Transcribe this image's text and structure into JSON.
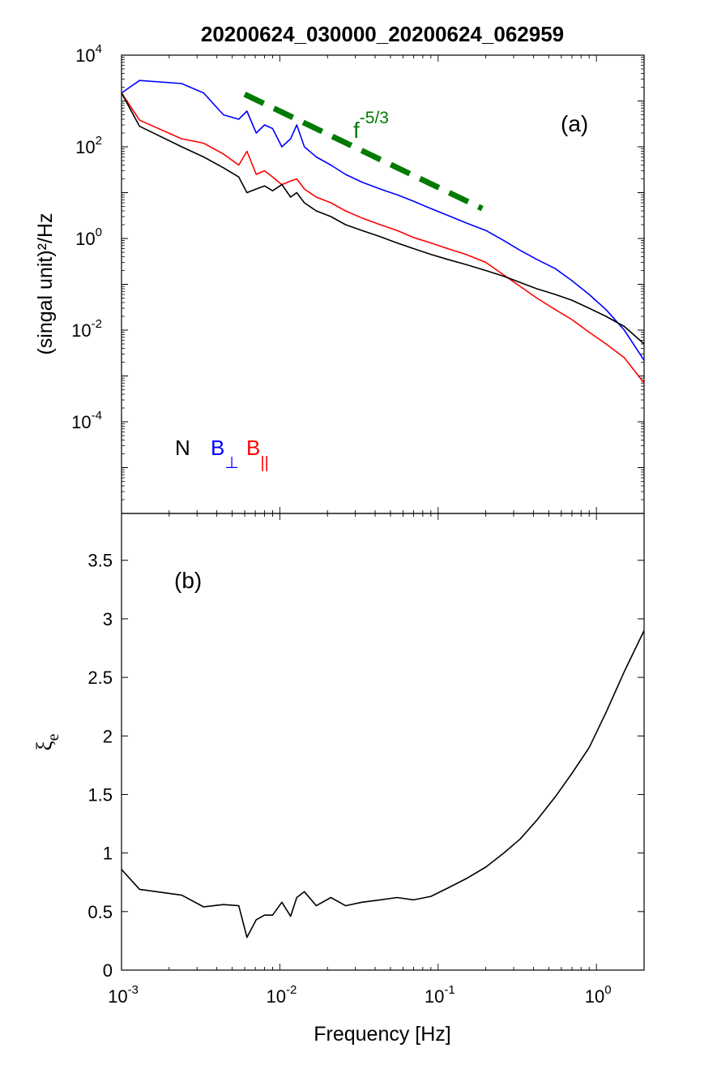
{
  "title": "20200624_030000_20200624_062959",
  "colors": {
    "N": "#000000",
    "B_perp": "#0000ff",
    "B_par": "#ff0000",
    "fit": "#007a00",
    "axis": "#000000"
  },
  "chart_data": [
    {
      "panel": "a",
      "type": "line",
      "panel_label": "(a)",
      "xscale": "log",
      "yscale": "log",
      "xlim": [
        0.001,
        2.0
      ],
      "ylim": [
        1e-06,
        10000
      ],
      "grid": false,
      "xlabel": "",
      "ylabel": "(singal unit)²/Hz",
      "ytick_labels": [
        {
          "value": 10000,
          "base": "10",
          "exp": "4"
        },
        {
          "value": 100,
          "base": "10",
          "exp": "2"
        },
        {
          "value": 1,
          "base": "10",
          "exp": "0"
        },
        {
          "value": 0.01,
          "base": "10",
          "exp": "-2"
        },
        {
          "value": 0.0001,
          "base": "10",
          "exp": "-4"
        }
      ],
      "legend": {
        "placement": "lower-left",
        "entries": [
          {
            "main": "N",
            "sub": "",
            "color": "#000000"
          },
          {
            "main": "B",
            "sub": "⊥",
            "color": "#0000ff"
          },
          {
            "main": "B",
            "sub": "||",
            "color": "#ff0000"
          }
        ]
      },
      "series": [
        {
          "color": "#0000ff",
          "x": [
            0.001,
            0.0013,
            0.0024,
            0.0033,
            0.0044,
            0.0055,
            0.0062,
            0.0071,
            0.008,
            0.009,
            0.0103,
            0.0117,
            0.0128,
            0.0143,
            0.017,
            0.021,
            0.026,
            0.033,
            0.043,
            0.055,
            0.07,
            0.09,
            0.115,
            0.15,
            0.2,
            0.26,
            0.33,
            0.42,
            0.55,
            0.7,
            0.9,
            1.15,
            1.5,
            2.0
          ],
          "y": [
            1500,
            2800,
            2400,
            1500,
            500,
            400,
            600,
            200,
            300,
            250,
            100,
            150,
            300,
            100,
            60,
            40,
            25,
            17,
            12,
            9,
            6.5,
            4.5,
            3.2,
            2.2,
            1.5,
            0.9,
            0.55,
            0.35,
            0.22,
            0.12,
            0.06,
            0.028,
            0.01,
            0.0022
          ]
        },
        {
          "color": "#ff0000",
          "x": [
            0.001,
            0.0013,
            0.0024,
            0.0033,
            0.0044,
            0.0055,
            0.0062,
            0.0071,
            0.008,
            0.009,
            0.0103,
            0.0117,
            0.0128,
            0.0143,
            0.017,
            0.021,
            0.026,
            0.033,
            0.043,
            0.055,
            0.07,
            0.09,
            0.115,
            0.15,
            0.2,
            0.26,
            0.33,
            0.42,
            0.55,
            0.7,
            0.9,
            1.15,
            1.5,
            2.0
          ],
          "y": [
            1500,
            380,
            150,
            120,
            70,
            40,
            80,
            25,
            30,
            22,
            15,
            18,
            20,
            12,
            8,
            6,
            4,
            2.8,
            2,
            1.5,
            1.05,
            0.8,
            0.6,
            0.45,
            0.3,
            0.16,
            0.09,
            0.05,
            0.028,
            0.017,
            0.009,
            0.005,
            0.0025,
            0.0007
          ]
        },
        {
          "color": "#000000",
          "x": [
            0.001,
            0.0013,
            0.0024,
            0.0033,
            0.0044,
            0.0055,
            0.0062,
            0.0071,
            0.008,
            0.009,
            0.0103,
            0.0117,
            0.0128,
            0.0143,
            0.017,
            0.021,
            0.026,
            0.033,
            0.043,
            0.055,
            0.07,
            0.09,
            0.115,
            0.15,
            0.2,
            0.26,
            0.33,
            0.42,
            0.55,
            0.7,
            0.9,
            1.15,
            1.5,
            2.0
          ],
          "y": [
            1500,
            280,
            100,
            60,
            35,
            22,
            10,
            12,
            14,
            11,
            15,
            8,
            10,
            6,
            4,
            3,
            2,
            1.5,
            1.1,
            0.8,
            0.6,
            0.45,
            0.35,
            0.27,
            0.2,
            0.15,
            0.11,
            0.08,
            0.06,
            0.045,
            0.03,
            0.02,
            0.012,
            0.005
          ]
        }
      ],
      "reference_line": {
        "label_main": "f",
        "label_exp": "-5/3",
        "color": "#007a00",
        "style": "dashed",
        "x": [
          0.006,
          0.19
        ],
        "y": [
          1400,
          4.5
        ]
      }
    },
    {
      "panel": "b",
      "type": "line",
      "panel_label": "(b)",
      "xscale": "log",
      "yscale": "linear",
      "xlim": [
        0.001,
        2.0
      ],
      "ylim": [
        0,
        3.9
      ],
      "grid": false,
      "xlabel": "Frequency [Hz]",
      "ylabel_main": "ξ",
      "ylabel_sub": "e",
      "yticks": [
        0,
        0.5,
        1,
        1.5,
        2,
        2.5,
        3,
        3.5
      ],
      "ytick_labels": [
        "0",
        "0.5",
        "1",
        "1.5",
        "2",
        "2.5",
        "3",
        "3.5"
      ],
      "xticks": [
        0.001,
        0.01,
        0.1,
        1
      ],
      "xtick_labels": [
        {
          "base": "10",
          "exp": "-3"
        },
        {
          "base": "10",
          "exp": "-2"
        },
        {
          "base": "10",
          "exp": "-1"
        },
        {
          "base": "10",
          "exp": "0"
        }
      ],
      "series": [
        {
          "color": "#000000",
          "x": [
            0.001,
            0.0013,
            0.0024,
            0.0033,
            0.0044,
            0.0055,
            0.0062,
            0.0071,
            0.008,
            0.009,
            0.0103,
            0.0117,
            0.0128,
            0.0143,
            0.017,
            0.021,
            0.026,
            0.033,
            0.043,
            0.055,
            0.07,
            0.09,
            0.115,
            0.15,
            0.2,
            0.26,
            0.33,
            0.42,
            0.55,
            0.7,
            0.9,
            1.15,
            1.5,
            2.0
          ],
          "y": [
            0.86,
            0.69,
            0.64,
            0.54,
            0.56,
            0.55,
            0.28,
            0.43,
            0.47,
            0.47,
            0.58,
            0.46,
            0.62,
            0.67,
            0.55,
            0.62,
            0.55,
            0.58,
            0.6,
            0.62,
            0.6,
            0.63,
            0.7,
            0.78,
            0.88,
            1.0,
            1.12,
            1.28,
            1.48,
            1.68,
            1.9,
            2.2,
            2.55,
            2.9
          ]
        }
      ]
    }
  ]
}
